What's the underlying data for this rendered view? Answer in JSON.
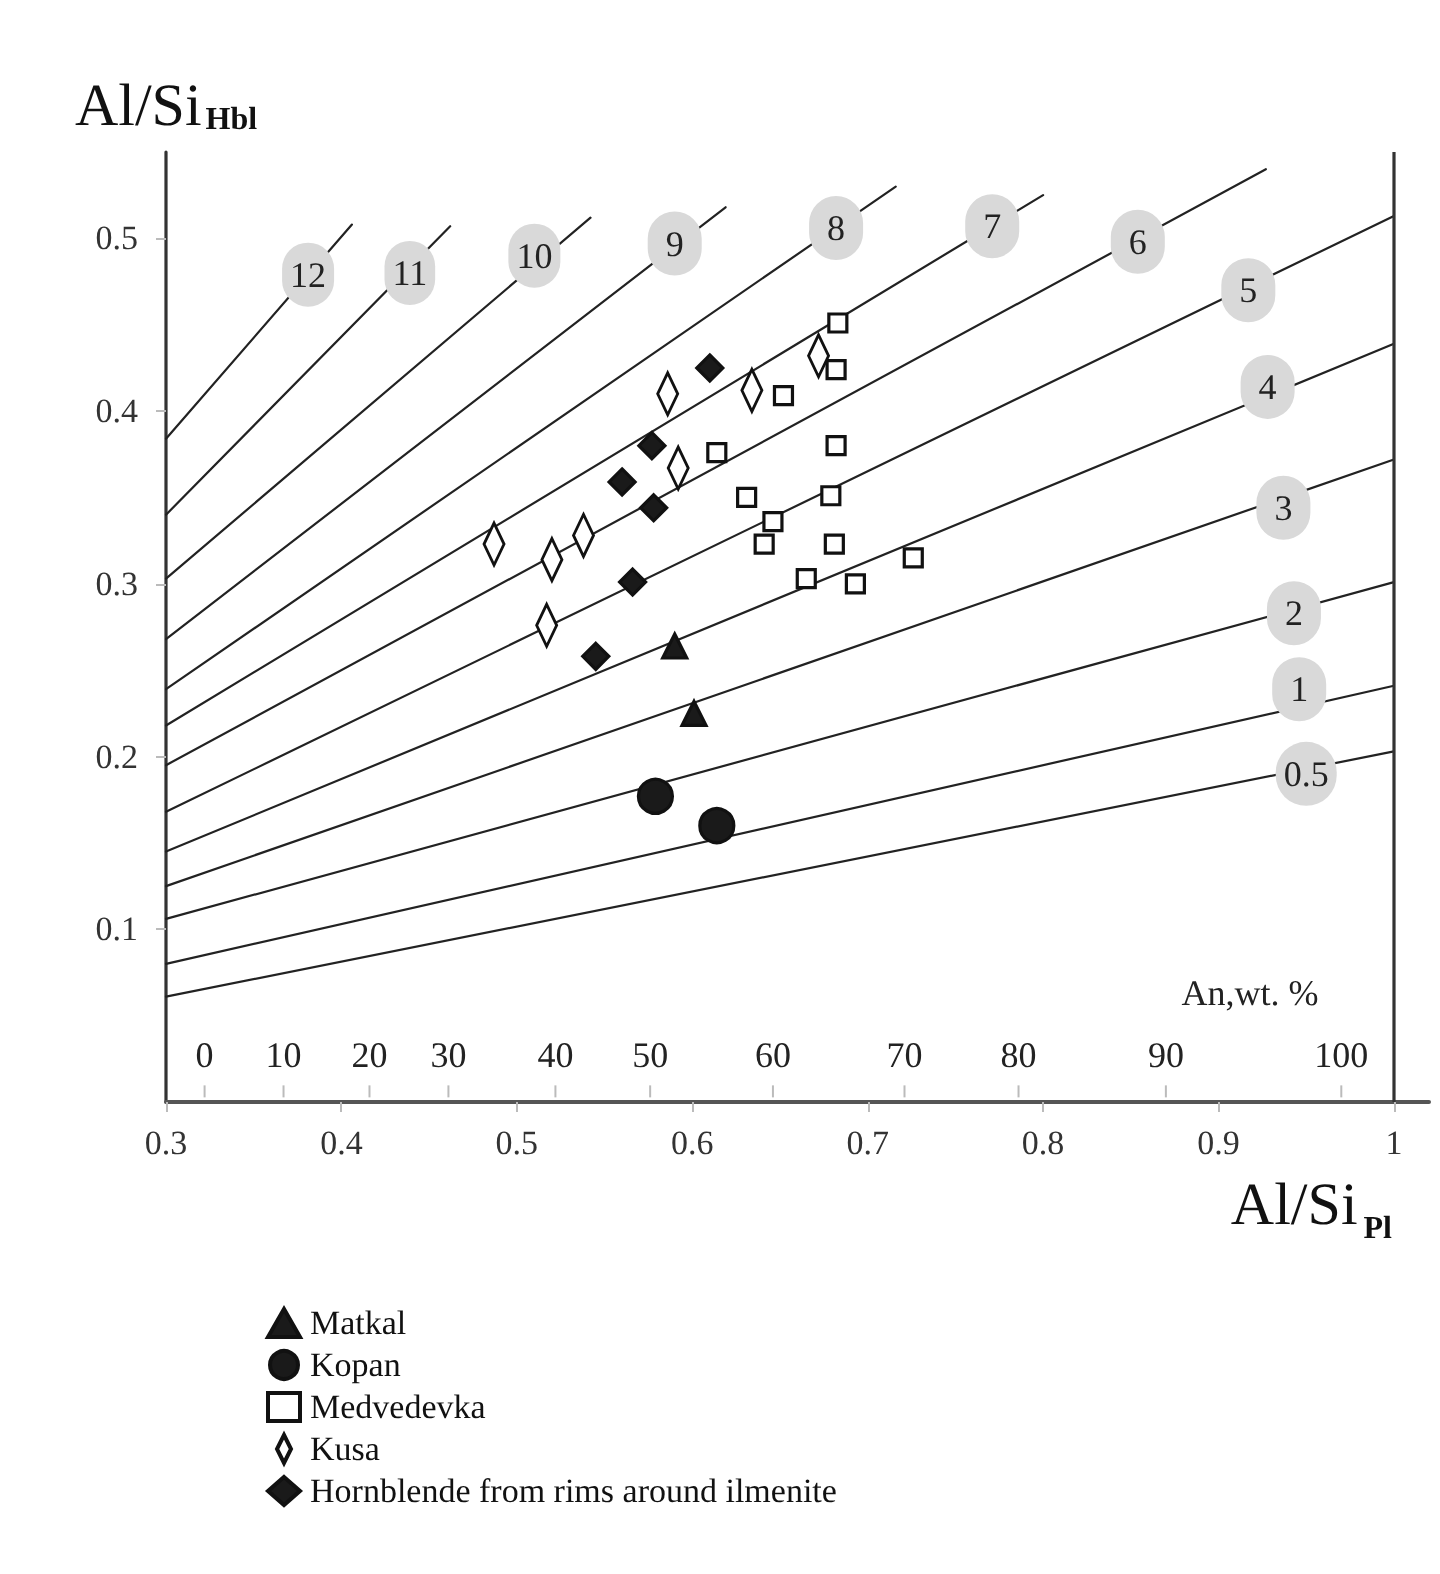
{
  "chart_data": {
    "type": "scatter",
    "xlabel": "Al/Si$_{Pl}$",
    "ylabel": "Al/Si$_{Hbl}$",
    "xlim": [
      0.3,
      1.02
    ],
    "xticks": [
      0.3,
      0.4,
      0.5,
      0.6,
      0.7,
      0.8,
      0.9,
      1
    ],
    "ylim": [
      0,
      0.55
    ],
    "yticks": [
      0.1,
      0.2,
      0.3,
      0.4,
      0.5
    ],
    "grid": false,
    "legend": "bottom left",
    "ref_lines": [
      {
        "axis": "x",
        "value": 1,
        "color": "#333333"
      }
    ],
    "series": [
      {
        "name": "Matkal",
        "type": "scatter",
        "marker": "triangle",
        "color": "#1a1a1a",
        "x": [
          0.59,
          0.601
        ],
        "values": [
          0.264,
          0.225
        ]
      },
      {
        "name": "Kopan",
        "type": "scatter",
        "marker": "circle",
        "color": "#1a1a1a",
        "x": [
          0.579,
          0.614
        ],
        "values": [
          0.177,
          0.16
        ]
      },
      {
        "name": "Medvedevka",
        "type": "scatter",
        "marker": "square",
        "color": "#ffffff",
        "x": [
          0.683,
          0.682,
          0.652,
          0.614,
          0.682,
          0.631,
          0.679,
          0.646,
          0.641,
          0.681,
          0.726,
          0.665,
          0.693
        ],
        "values": [
          0.451,
          0.424,
          0.409,
          0.376,
          0.38,
          0.35,
          0.351,
          0.336,
          0.323,
          0.323,
          0.315,
          0.303,
          0.3
        ]
      },
      {
        "name": "Kusa",
        "type": "scatter",
        "marker": "diamond",
        "color": "#ffffff",
        "x": [
          0.487,
          0.52,
          0.538,
          0.517,
          0.586,
          0.592,
          0.634,
          0.672
        ],
        "values": [
          0.323,
          0.314,
          0.328,
          0.276,
          0.41,
          0.367,
          0.412,
          0.432
        ]
      },
      {
        "name": "Hornblende from rims around ilmenite",
        "type": "scatter",
        "marker": "diamond",
        "color": "#1a1a1a",
        "x": [
          0.61,
          0.577,
          0.56,
          0.578,
          0.566,
          0.545
        ],
        "values": [
          0.425,
          0.38,
          0.359,
          0.344,
          0.301,
          0.258
        ]
      },
      {
        "type": "line",
        "color": "#222222",
        "x": [
          0.3,
          0.406
        ],
        "values": [
          0.384,
          0.508
        ]
      },
      {
        "type": "line",
        "color": "#222222",
        "x": [
          0.3,
          0.462
        ],
        "values": [
          0.34,
          0.507
        ]
      },
      {
        "type": "line",
        "color": "#222222",
        "x": [
          0.3,
          0.542
        ],
        "values": [
          0.303,
          0.512
        ]
      },
      {
        "type": "line",
        "color": "#222222",
        "x": [
          0.3,
          0.619
        ],
        "values": [
          0.268,
          0.518
        ]
      },
      {
        "type": "line",
        "color": "#222222",
        "x": [
          0.3,
          0.716
        ],
        "values": [
          0.239,
          0.53
        ]
      },
      {
        "type": "line",
        "color": "#222222",
        "x": [
          0.3,
          0.8
        ],
        "values": [
          0.218,
          0.525
        ]
      },
      {
        "type": "line",
        "color": "#222222",
        "x": [
          0.3,
          0.927
        ],
        "values": [
          0.195,
          0.54
        ]
      },
      {
        "type": "line",
        "color": "#222222",
        "x": [
          0.3,
          1
        ],
        "values": [
          0.168,
          0.513
        ]
      },
      {
        "type": "line",
        "color": "#222222",
        "x": [
          0.3,
          1
        ],
        "values": [
          0.145,
          0.439
        ]
      },
      {
        "type": "line",
        "color": "#222222",
        "x": [
          0.3,
          1
        ],
        "values": [
          0.125,
          0.372
        ]
      },
      {
        "type": "line",
        "color": "#222222",
        "x": [
          0.3,
          1
        ],
        "values": [
          0.106,
          0.301
        ]
      },
      {
        "type": "line",
        "color": "#222222",
        "x": [
          0.3,
          1
        ],
        "values": [
          0.08,
          0.241
        ]
      },
      {
        "type": "line",
        "color": "#222222",
        "x": [
          0.3,
          1
        ],
        "values": [
          0.061,
          0.203
        ]
      }
    ],
    "annotations": [
      {
        "text": "12",
        "x": 0.381,
        "y": 0.479
      },
      {
        "text": "11",
        "x": 0.439,
        "y": 0.48
      },
      {
        "text": "10",
        "x": 0.51,
        "y": 0.49
      },
      {
        "text": "9",
        "x": 0.59,
        "y": 0.497
      },
      {
        "text": "8",
        "x": 0.682,
        "y": 0.506
      },
      {
        "text": "7",
        "x": 0.771,
        "y": 0.507
      },
      {
        "text": "6",
        "x": 0.854,
        "y": 0.498
      },
      {
        "text": "5",
        "x": 0.917,
        "y": 0.47
      },
      {
        "text": "4",
        "x": 0.928,
        "y": 0.414
      },
      {
        "text": "3",
        "x": 0.937,
        "y": 0.344
      },
      {
        "text": "2",
        "x": 0.943,
        "y": 0.283
      },
      {
        "text": "1",
        "x": 0.946,
        "y": 0.239
      },
      {
        "text": "0.5",
        "x": 0.95,
        "y": 0.19
      },
      "An,wt. %",
      "0",
      "10",
      "20",
      "30",
      "40",
      "50",
      "60",
      "70",
      "80",
      "90",
      "100"
    ]
  }
}
